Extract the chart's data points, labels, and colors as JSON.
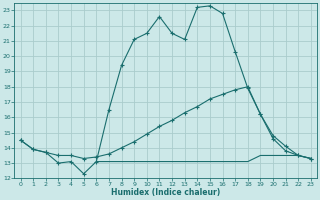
{
  "xlabel": "Humidex (Indice chaleur)",
  "bg_color": "#cce8e8",
  "grid_color": "#aacccc",
  "line_color": "#1a6e6e",
  "xlim": [
    -0.5,
    23.5
  ],
  "ylim": [
    12,
    23.5
  ],
  "yticks": [
    12,
    13,
    14,
    15,
    16,
    17,
    18,
    19,
    20,
    21,
    22,
    23
  ],
  "xticks": [
    0,
    1,
    2,
    3,
    4,
    5,
    6,
    7,
    8,
    9,
    10,
    11,
    12,
    13,
    14,
    15,
    16,
    17,
    18,
    19,
    20,
    21,
    22,
    23
  ],
  "line1_x": [
    0,
    1,
    2,
    3,
    4,
    5,
    6,
    7,
    8,
    9,
    10,
    11,
    12,
    13,
    14,
    15,
    16,
    17,
    18,
    19,
    20,
    21,
    22,
    23
  ],
  "line1_y": [
    14.5,
    13.9,
    13.7,
    13.0,
    13.1,
    12.3,
    13.1,
    16.5,
    19.4,
    21.1,
    21.5,
    22.6,
    21.5,
    21.1,
    23.2,
    23.3,
    22.8,
    20.3,
    17.9,
    16.2,
    14.8,
    14.1,
    13.5,
    13.3
  ],
  "line2_x": [
    0,
    1,
    2,
    3,
    4,
    5,
    6,
    7,
    8,
    9,
    10,
    11,
    12,
    13,
    14,
    15,
    16,
    17,
    18,
    19,
    20,
    21,
    22,
    23
  ],
  "line2_y": [
    14.5,
    13.9,
    13.7,
    13.5,
    13.5,
    13.3,
    13.4,
    13.6,
    14.0,
    14.4,
    14.9,
    15.4,
    15.8,
    16.3,
    16.7,
    17.2,
    17.5,
    17.8,
    18.0,
    16.2,
    14.6,
    13.8,
    13.5,
    13.3
  ],
  "line3_x": [
    6,
    7,
    8,
    9,
    10,
    11,
    12,
    13,
    14,
    15,
    16,
    17,
    18,
    19,
    20,
    21,
    22,
    23
  ],
  "line3_y": [
    13.1,
    13.1,
    13.1,
    13.1,
    13.1,
    13.1,
    13.1,
    13.1,
    13.1,
    13.1,
    13.1,
    13.1,
    13.1,
    13.5,
    13.5,
    13.5,
    13.5,
    13.3
  ]
}
